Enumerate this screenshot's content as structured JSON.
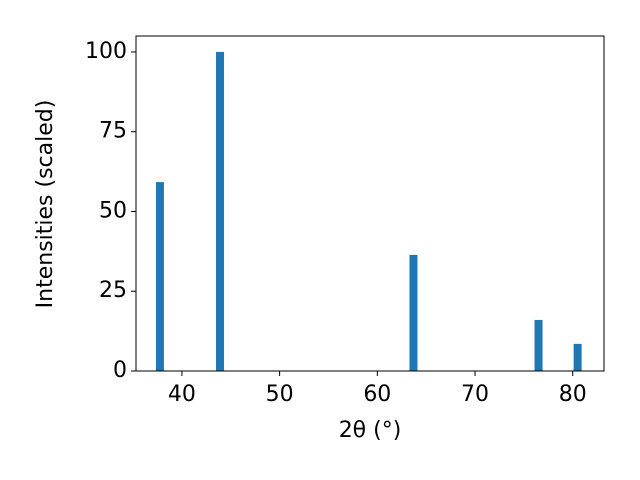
{
  "chart_data": {
    "type": "bar",
    "xlabel": "2θ (°)",
    "ylabel": "Intensities (scaled)",
    "x": [
      37.75,
      43.9,
      63.7,
      76.5,
      80.5
    ],
    "values": [
      59.2,
      100,
      36.4,
      16.0,
      8.5
    ],
    "color": "#1f77b4",
    "xlim": [
      35.3,
      83.2
    ],
    "xticks": [
      40,
      50,
      60,
      70,
      80
    ],
    "ylim": [
      0,
      105
    ],
    "yticks": [
      0,
      25,
      50,
      75,
      100
    ]
  }
}
